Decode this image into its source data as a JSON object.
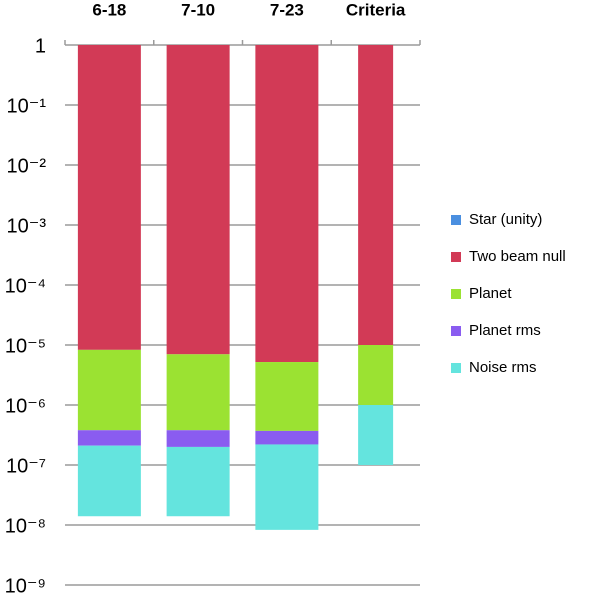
{
  "chart_data": {
    "type": "floating-stacked-bar",
    "categories": [
      "6-18",
      "7-10",
      "7-23",
      "Criteria"
    ],
    "log_scale": true,
    "grid": true,
    "ylim": [
      1e-09,
      1
    ],
    "yticks": [
      {
        "value": 1,
        "label": "1"
      },
      {
        "value": 0.1,
        "label": "10⁻¹"
      },
      {
        "value": 0.01,
        "label": "10⁻²"
      },
      {
        "value": 0.001,
        "label": "10⁻³"
      },
      {
        "value": 0.0001,
        "label": "10⁻⁴"
      },
      {
        "value": 1e-05,
        "label": "10⁻⁵"
      },
      {
        "value": 1e-06,
        "label": "10⁻⁶"
      },
      {
        "value": 1e-07,
        "label": "10⁻⁷"
      },
      {
        "value": 1e-08,
        "label": "10⁻⁸"
      },
      {
        "value": 1e-09,
        "label": "10⁻⁹"
      }
    ],
    "legend": "right",
    "series": [
      {
        "name": "Star (unity)",
        "color": "#4a8fe0",
        "values": [
          null,
          null,
          null,
          null
        ]
      },
      {
        "name": "Two beam null",
        "color": "#d23a56",
        "values": [
          [
            8.3e-06,
            1
          ],
          [
            7e-06,
            1
          ],
          [
            5.2e-06,
            1
          ],
          [
            1e-05,
            1
          ]
        ]
      },
      {
        "name": "Planet",
        "color": "#9be232",
        "values": [
          [
            3.8e-07,
            8.3e-06
          ],
          [
            3.8e-07,
            7e-06
          ],
          [
            3.7e-07,
            5.2e-06
          ],
          [
            1e-06,
            1e-05
          ]
        ]
      },
      {
        "name": "Planet rms",
        "color": "#8a5cf0",
        "values": [
          [
            2.1e-07,
            3.8e-07
          ],
          [
            2e-07,
            3.8e-07
          ],
          [
            2.2e-07,
            3.7e-07
          ],
          null
        ]
      },
      {
        "name": "Noise rms",
        "color": "#64e4de",
        "values": [
          [
            1.4e-08,
            2.1e-07
          ],
          [
            1.4e-08,
            2e-07
          ],
          [
            8.3e-09,
            2.2e-07
          ],
          [
            1e-07,
            1e-06
          ]
        ]
      }
    ]
  }
}
